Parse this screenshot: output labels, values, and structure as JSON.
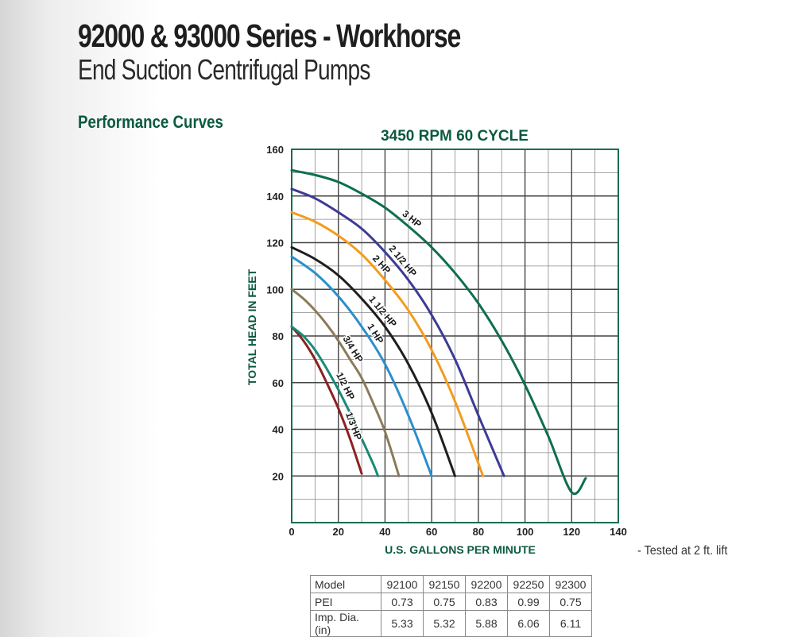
{
  "header": {
    "title": "92000 & 93000 Series - Workhorse",
    "subtitle": "End Suction Centrifugal Pumps",
    "section": "Performance Curves"
  },
  "note": "- Tested at 2 ft. lift",
  "chart_data": {
    "type": "line",
    "title": "3450 RPM 60 CYCLE",
    "xlabel": "U.S. GALLONS PER MINUTE",
    "ylabel": "TOTAL HEAD IN FEET",
    "xlim": [
      0,
      140
    ],
    "ylim": [
      0,
      160
    ],
    "xticks": [
      0,
      20,
      40,
      60,
      80,
      100,
      120,
      140
    ],
    "yticks": [
      20,
      40,
      60,
      80,
      100,
      120,
      140,
      160
    ],
    "grid": true,
    "series": [
      {
        "name": "1/3 HP",
        "color": "#8b2222",
        "x": [
          0,
          5,
          10,
          15,
          20,
          25,
          30
        ],
        "y": [
          84,
          78,
          70,
          60,
          49,
          36,
          21
        ]
      },
      {
        "name": "1/2 HP",
        "color": "#1a8a78",
        "x": [
          0,
          5,
          10,
          15,
          20,
          25,
          30,
          35,
          37
        ],
        "y": [
          84,
          80,
          74,
          66,
          57,
          47,
          36,
          25,
          20
        ]
      },
      {
        "name": "3/4 HP",
        "color": "#8c7a5a",
        "x": [
          0,
          5,
          10,
          15,
          20,
          25,
          30,
          35,
          40,
          46
        ],
        "y": [
          100,
          96,
          91,
          85,
          78,
          70,
          62,
          51,
          39,
          20
        ]
      },
      {
        "name": "1 HP",
        "color": "#2b8fcc",
        "x": [
          0,
          10,
          20,
          30,
          40,
          50,
          60
        ],
        "y": [
          114,
          107,
          97,
          84,
          68,
          46,
          20
        ]
      },
      {
        "name": "1 1/2 HP",
        "color": "#1e1e1e",
        "x": [
          0,
          10,
          20,
          30,
          40,
          50,
          60,
          70
        ],
        "y": [
          118,
          113,
          106,
          96,
          84,
          68,
          47,
          20
        ]
      },
      {
        "name": "2 HP",
        "color": "#f39c1e",
        "x": [
          0,
          10,
          20,
          30,
          40,
          50,
          60,
          70,
          82
        ],
        "y": [
          133,
          129,
          123,
          115,
          104,
          91,
          74,
          52,
          20
        ]
      },
      {
        "name": "2 1/2 HP",
        "color": "#3d3b96",
        "x": [
          0,
          10,
          20,
          30,
          40,
          50,
          60,
          70,
          80,
          91
        ],
        "y": [
          143,
          139,
          133,
          126,
          116,
          104,
          89,
          70,
          46,
          20
        ]
      },
      {
        "name": "3 HP",
        "color": "#0e6e52",
        "x": [
          0,
          10,
          20,
          30,
          40,
          50,
          60,
          70,
          80,
          90,
          100,
          110,
          120,
          126
        ],
        "y": [
          151,
          149,
          146,
          141,
          135,
          127,
          118,
          107,
          94,
          78,
          59,
          37,
          13,
          19
        ]
      }
    ]
  },
  "table": {
    "rows": [
      [
        "Model",
        "92100",
        "92150",
        "92200",
        "92250",
        "92300"
      ],
      [
        "PEI",
        "0.73",
        "0.75",
        "0.83",
        "0.99",
        "0.75"
      ],
      [
        "Imp. Dia. (in)",
        "5.33",
        "5.32",
        "5.88",
        "6.06",
        "6.11"
      ]
    ]
  }
}
